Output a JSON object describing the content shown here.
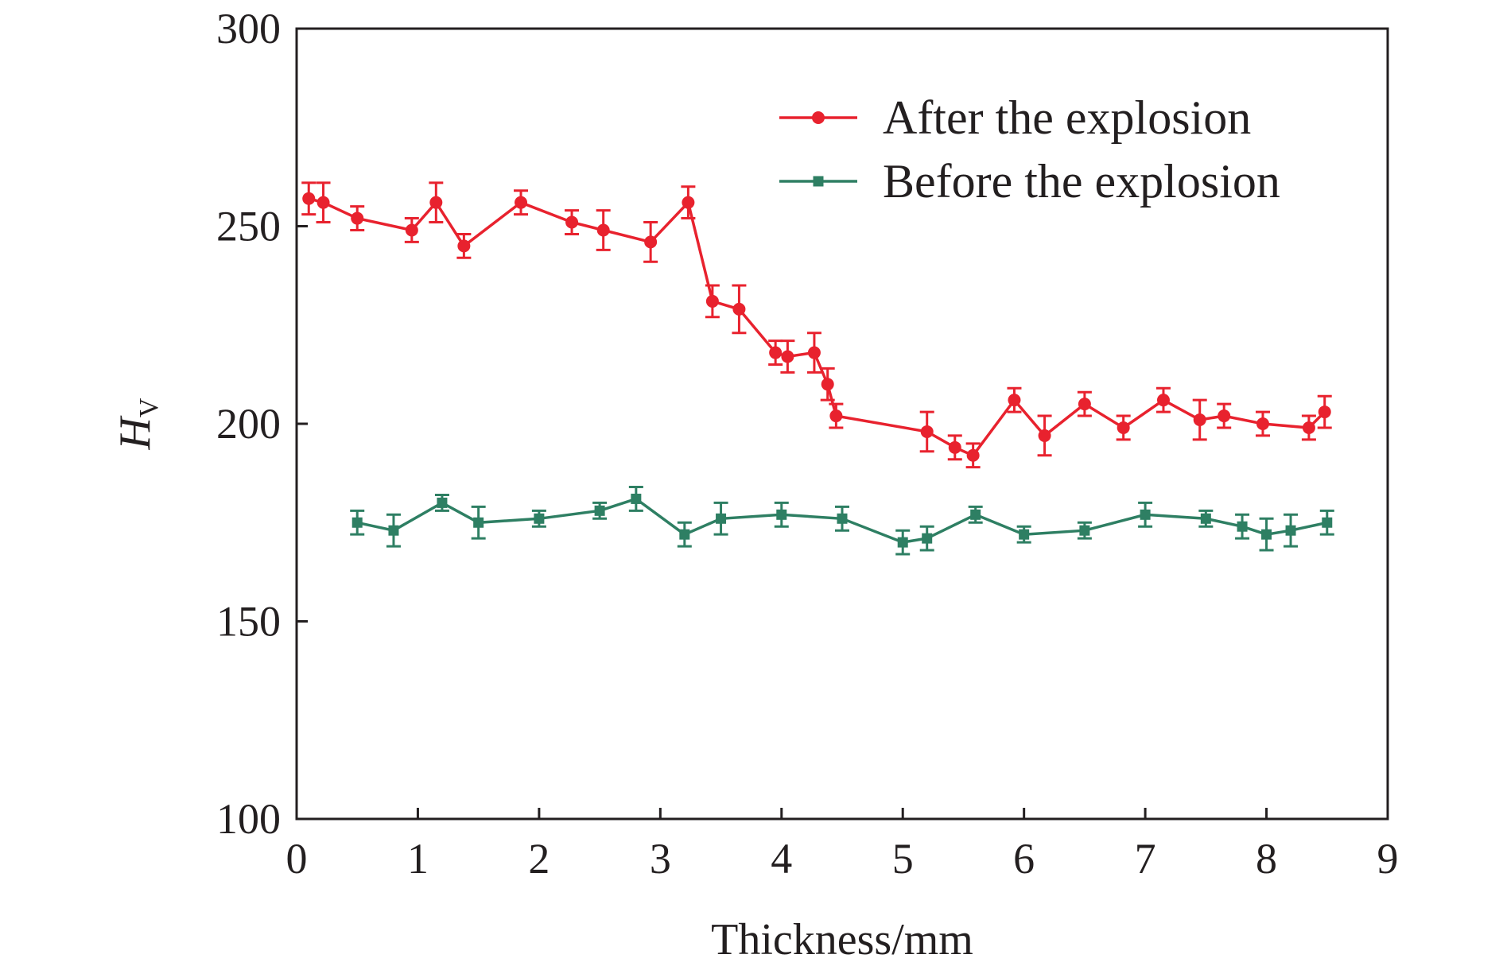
{
  "chart_data": {
    "type": "line",
    "xlabel": "Thickness/mm",
    "ylabel_main": "H",
    "ylabel_sub": "V",
    "xlim": [
      0,
      9
    ],
    "ylim": [
      100,
      300
    ],
    "xticks": [
      "0",
      "1",
      "2",
      "3",
      "4",
      "5",
      "6",
      "7",
      "8",
      "9"
    ],
    "yticks": [
      "100",
      "150",
      "200",
      "250",
      "300"
    ],
    "grid": false,
    "legend_position": "top-right",
    "series": [
      {
        "name": "After the explosion",
        "color": "#e8222e",
        "marker": "circle",
        "x": [
          0.1,
          0.22,
          0.5,
          0.95,
          1.15,
          1.38,
          1.85,
          2.27,
          2.53,
          2.92,
          3.23,
          3.43,
          3.65,
          3.95,
          4.05,
          4.27,
          4.38,
          4.45,
          5.2,
          5.43,
          5.58,
          5.92,
          6.17,
          6.5,
          6.82,
          7.15,
          7.45,
          7.65,
          7.97,
          8.35,
          8.48
        ],
        "y": [
          257,
          256,
          252,
          249,
          256,
          245,
          256,
          251,
          249,
          246,
          256,
          231,
          229,
          218,
          217,
          218,
          210,
          202,
          198,
          194,
          192,
          206,
          197,
          205,
          199,
          206,
          201,
          202,
          200,
          199,
          203
        ],
        "err": [
          4,
          5,
          3,
          3,
          5,
          3,
          3,
          3,
          5,
          5,
          4,
          4,
          6,
          3,
          4,
          5,
          4,
          3,
          5,
          3,
          3,
          3,
          5,
          3,
          3,
          3,
          5,
          3,
          3,
          3,
          4
        ]
      },
      {
        "name": "Before the explosion",
        "color": "#2e7f63",
        "marker": "square",
        "x": [
          0.5,
          0.8,
          1.2,
          1.5,
          2.0,
          2.5,
          2.8,
          3.2,
          3.5,
          4.0,
          4.5,
          5.0,
          5.2,
          5.6,
          6.0,
          6.5,
          7.0,
          7.5,
          7.8,
          8.0,
          8.2,
          8.5
        ],
        "y": [
          175,
          173,
          180,
          175,
          176,
          178,
          181,
          172,
          176,
          177,
          176,
          170,
          171,
          177,
          172,
          173,
          177,
          176,
          174,
          172,
          173,
          175
        ],
        "err": [
          3,
          4,
          2,
          4,
          2,
          2,
          3,
          3,
          4,
          3,
          3,
          3,
          3,
          2,
          2,
          2,
          3,
          2,
          3,
          4,
          4,
          3
        ]
      }
    ]
  }
}
